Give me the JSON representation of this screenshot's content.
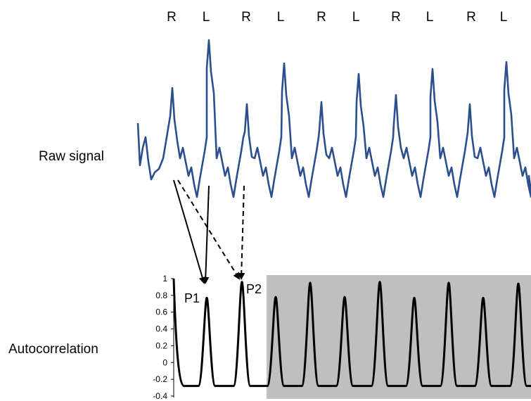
{
  "gait_labels": [
    "R",
    "L",
    "R",
    "L",
    "R",
    "L",
    "R",
    "L",
    "R",
    "L"
  ],
  "row_labels": {
    "raw_signal": "Raw signal",
    "autocorrelation": "Autocorrelation"
  },
  "peak_labels": {
    "p1": "P1",
    "p2": "P2"
  },
  "y_ticks": [
    "1",
    "0.8",
    "0.6",
    "0.4",
    "0.2",
    "0",
    "-0.2",
    "-0.4"
  ],
  "colors": {
    "raw_signal_line": "#2b4f8e",
    "autocorrelation_line": "#000000",
    "shaded_region": "#bfbfbf",
    "arrows": "#000000"
  },
  "chart_data": {
    "type": "line",
    "y_range": [
      -0.4,
      1
    ],
    "peaks_before_shading": [
      0.77,
      0.96
    ],
    "peaks_in_shaded_region": [
      0.78,
      0.95,
      0.78,
      0.96,
      0.77,
      0.95,
      0.77,
      0.94
    ],
    "trough_level": -0.28,
    "shaded_region": "from just after P2 to the right edge"
  }
}
